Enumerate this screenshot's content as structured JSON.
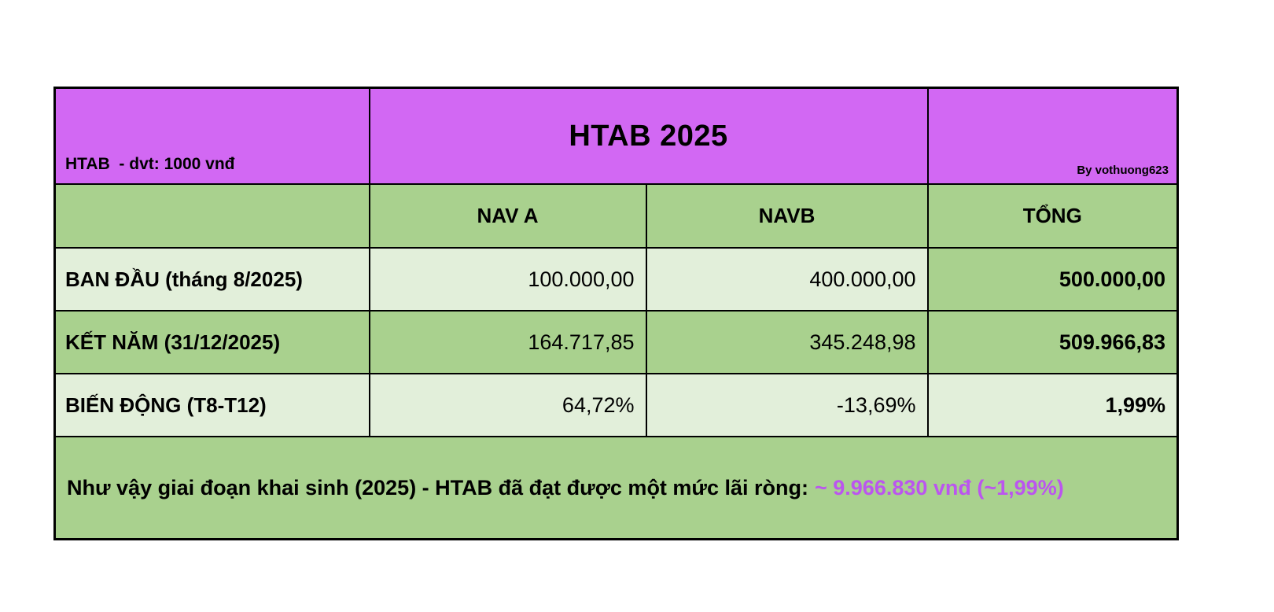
{
  "header": {
    "left": "HTAB  - dvt: 1000 vnđ",
    "title": "HTAB 2025",
    "byline": "By vothuong623"
  },
  "table": {
    "columns": [
      "NAV A",
      "NAVB",
      "TỔNG"
    ],
    "rows": [
      {
        "label": "BAN ĐẦU (tháng 8/2025)",
        "nav_a": "100.000,00",
        "nav_b": "400.000,00",
        "total": "500.000,00"
      },
      {
        "label": "KẾT NĂM (31/12/2025)",
        "nav_a": "164.717,85",
        "nav_b": "345.248,98",
        "total": "509.966,83"
      },
      {
        "label": "BIẾN ĐỘNG (T8-T12)",
        "nav_a": "64,72%",
        "nav_b": "-13,69%",
        "total": "1,99%"
      }
    ]
  },
  "note": {
    "text": "Như vậy giai đoạn khai sinh (2025) - HTAB đã đạt được một mức lãi ròng:",
    "value": "~ 9.966.830 vnđ (~1,99%)"
  },
  "colors": {
    "header_purple": "#d268f3",
    "green": "#a9d18e",
    "light_green": "#e2efda",
    "note_value_purple": "#bb55ef",
    "border": "#000000"
  },
  "chart_data": {
    "type": "table",
    "title": "HTAB 2025",
    "unit_note": "HTAB  - dvt: 1000 vnđ",
    "byline": "By vothuong623",
    "columns": [
      "",
      "NAV A",
      "NAVB",
      "TỔNG"
    ],
    "rows": [
      [
        "BAN ĐẦU (tháng 8/2025)",
        "100.000,00",
        "400.000,00",
        "500.000,00"
      ],
      [
        "KẾT NĂM (31/12/2025)",
        "164.717,85",
        "345.248,98",
        "509.966,83"
      ],
      [
        "BIẾN ĐỘNG (T8-T12)",
        "64,72%",
        "-13,69%",
        "1,99%"
      ]
    ],
    "note": "Như vậy giai đoạn khai sinh (2025) - HTAB đã đạt được một mức lãi ròng: ~ 9.966.830 vnđ (~1,99%)"
  }
}
